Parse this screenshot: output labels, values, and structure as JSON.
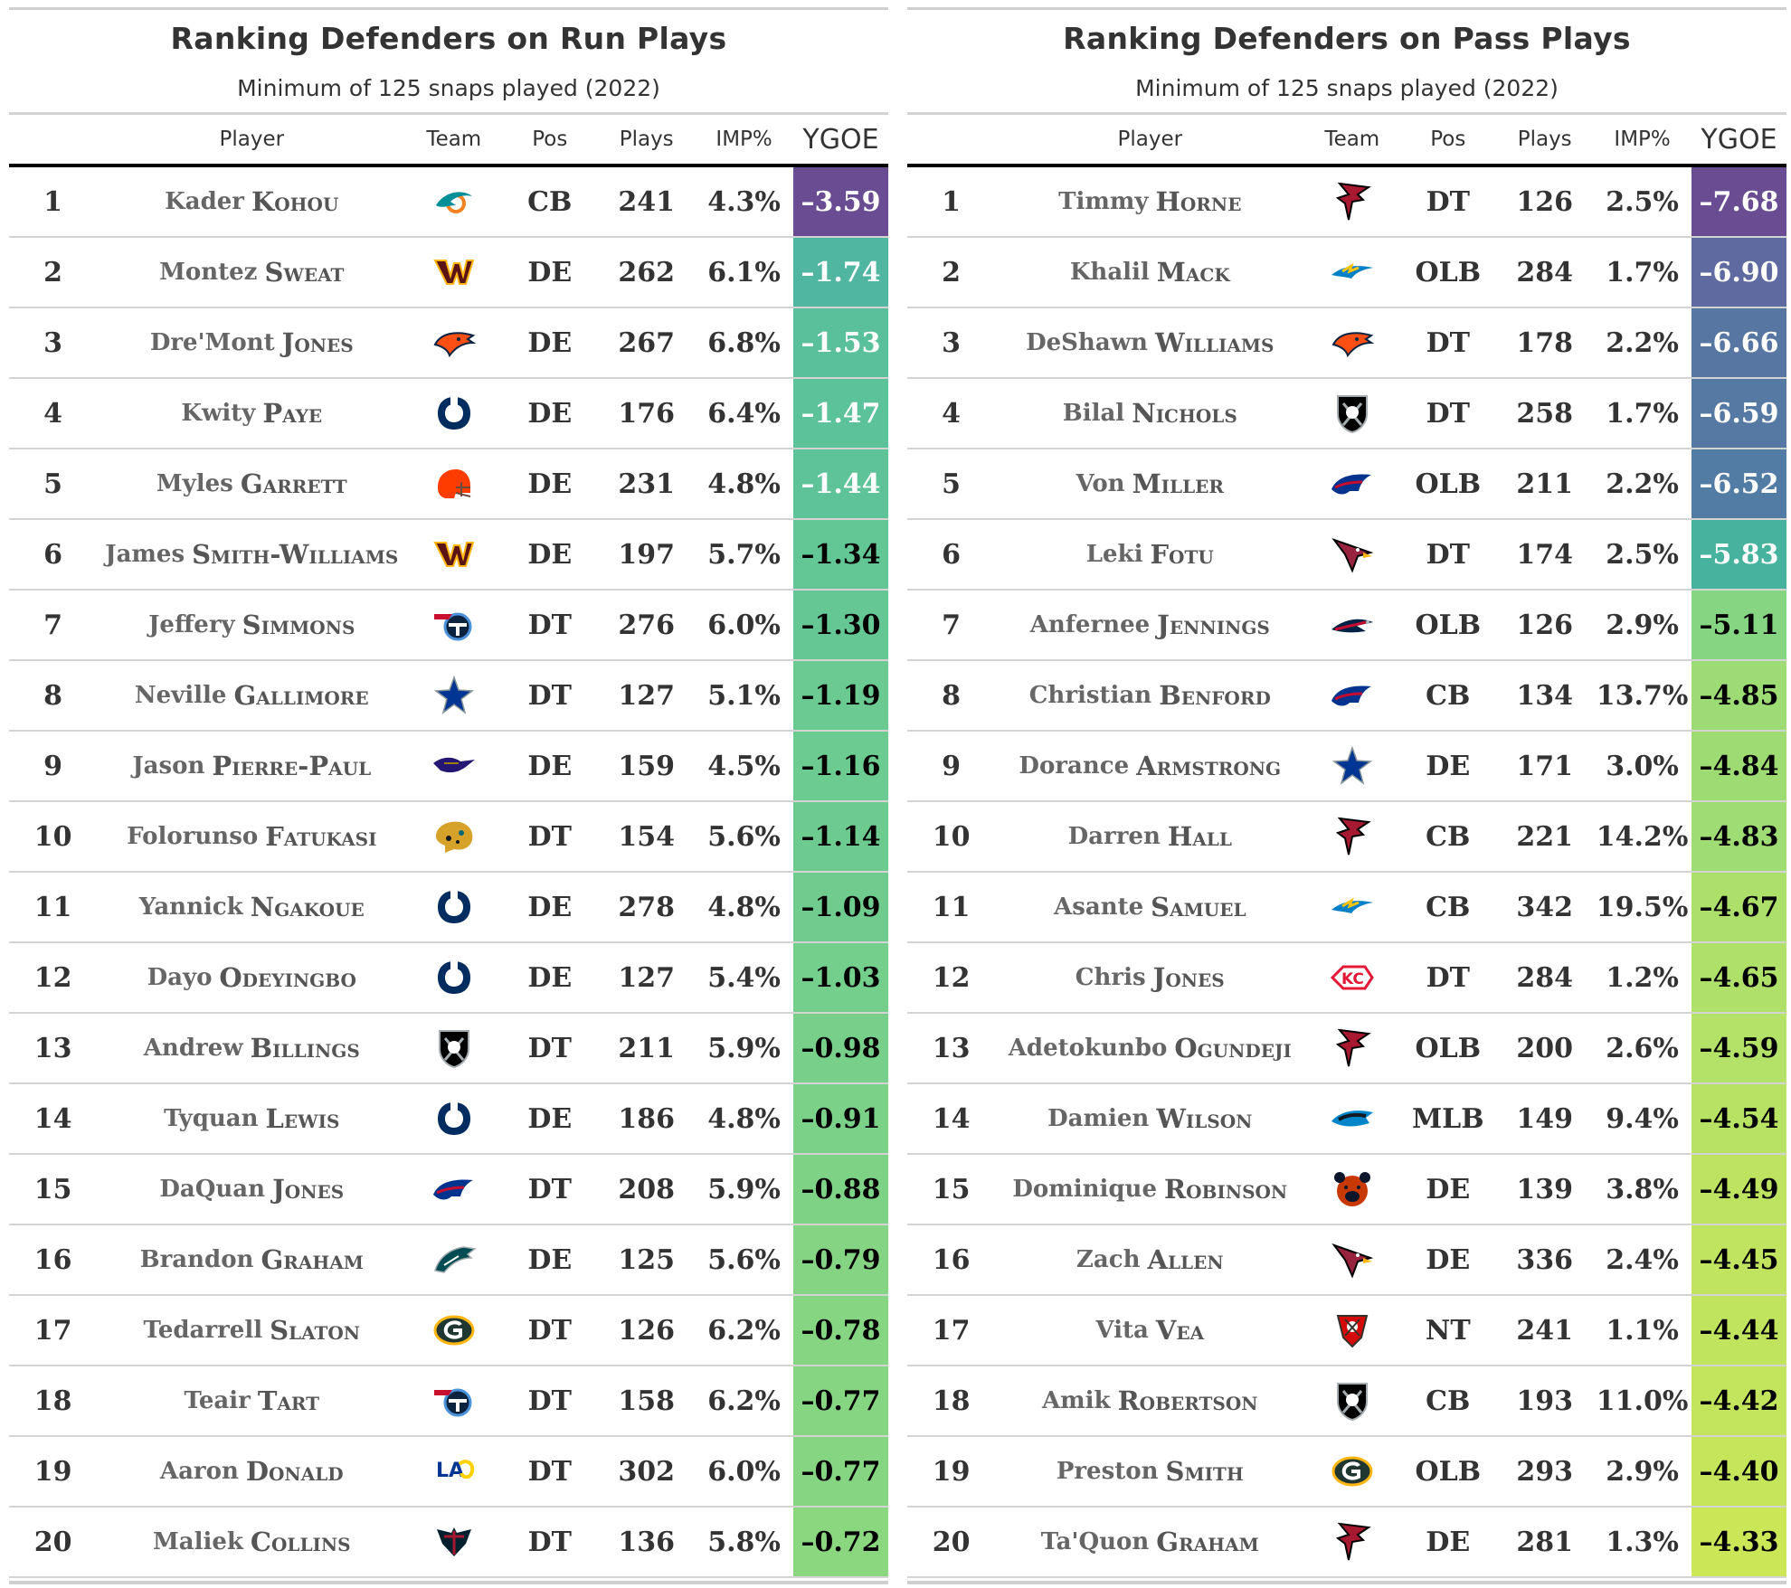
{
  "panels": [
    {
      "title": "Ranking Defenders on Run Plays",
      "subtitle": "Minimum of 125 snaps played (2022)",
      "columns": [
        "",
        "Player",
        "Team",
        "Pos",
        "Plays",
        "IMP%",
        "YGOE"
      ],
      "rows": [
        {
          "rank": "1",
          "first": "Kader",
          "last": "Kohou",
          "team": "dolphins-logo",
          "pos": "CB",
          "plays": "241",
          "imp": "4.3%",
          "ygoe": "–3.59",
          "color": "#6a4c93"
        },
        {
          "rank": "2",
          "first": "Montez",
          "last": "Sweat",
          "team": "commanders-logo",
          "pos": "DE",
          "plays": "262",
          "imp": "6.1%",
          "ygoe": "–1.74",
          "color": "#50b5a1"
        },
        {
          "rank": "3",
          "first": "Dre'Mont",
          "last": "Jones",
          "team": "broncos-logo",
          "pos": "DE",
          "plays": "267",
          "imp": "6.8%",
          "ygoe": "–1.53",
          "color": "#5ac09b"
        },
        {
          "rank": "4",
          "first": "Kwity",
          "last": "Paye",
          "team": "colts-logo",
          "pos": "DE",
          "plays": "176",
          "imp": "6.4%",
          "ygoe": "–1.47",
          "color": "#5cc299"
        },
        {
          "rank": "5",
          "first": "Myles",
          "last": "Garrett",
          "team": "browns-logo",
          "pos": "DE",
          "plays": "231",
          "imp": "4.8%",
          "ygoe": "–1.44",
          "color": "#5ec398"
        },
        {
          "rank": "6",
          "first": "James",
          "last": "Smith-Williams",
          "team": "commanders-logo",
          "pos": "DE",
          "plays": "197",
          "imp": "5.7%",
          "ygoe": "–1.34",
          "color": "#63c695"
        },
        {
          "rank": "7",
          "first": "Jeffery",
          "last": "Simmons",
          "team": "titans-logo",
          "pos": "DT",
          "plays": "276",
          "imp": "6.0%",
          "ygoe": "–1.30",
          "color": "#65c794"
        },
        {
          "rank": "8",
          "first": "Neville",
          "last": "Gallimore",
          "team": "cowboys-logo",
          "pos": "DT",
          "plays": "127",
          "imp": "5.1%",
          "ygoe": "–1.19",
          "color": "#6aca91"
        },
        {
          "rank": "9",
          "first": "Jason",
          "last": "Pierre-Paul",
          "team": "ravens-logo",
          "pos": "DE",
          "plays": "159",
          "imp": "4.5%",
          "ygoe": "–1.16",
          "color": "#6ccb90"
        },
        {
          "rank": "10",
          "first": "Folorunso",
          "last": "Fatukasi",
          "team": "jaguars-logo",
          "pos": "DT",
          "plays": "154",
          "imp": "5.6%",
          "ygoe": "–1.14",
          "color": "#6dcb8f"
        },
        {
          "rank": "11",
          "first": "Yannick",
          "last": "Ngakoue",
          "team": "colts-logo",
          "pos": "DE",
          "plays": "278",
          "imp": "4.8%",
          "ygoe": "–1.09",
          "color": "#70cc8e"
        },
        {
          "rank": "12",
          "first": "Dayo",
          "last": "Odeyingbo",
          "team": "colts-logo",
          "pos": "DE",
          "plays": "127",
          "imp": "5.4%",
          "ygoe": "–1.03",
          "color": "#74ce8c"
        },
        {
          "rank": "13",
          "first": "Andrew",
          "last": "Billings",
          "team": "raiders-logo",
          "pos": "DT",
          "plays": "211",
          "imp": "5.9%",
          "ygoe": "–0.98",
          "color": "#77cf8a"
        },
        {
          "rank": "14",
          "first": "Tyquan",
          "last": "Lewis",
          "team": "colts-logo",
          "pos": "DE",
          "plays": "186",
          "imp": "4.8%",
          "ygoe": "–0.91",
          "color": "#7bd188"
        },
        {
          "rank": "15",
          "first": "DaQuan",
          "last": "Jones",
          "team": "bills-logo",
          "pos": "DT",
          "plays": "208",
          "imp": "5.9%",
          "ygoe": "–0.88",
          "color": "#7ed286"
        },
        {
          "rank": "16",
          "first": "Brandon",
          "last": "Graham",
          "team": "eagles-logo",
          "pos": "DE",
          "plays": "125",
          "imp": "5.6%",
          "ygoe": "–0.79",
          "color": "#84d483"
        },
        {
          "rank": "17",
          "first": "Tedarrell",
          "last": "Slaton",
          "team": "packers-logo",
          "pos": "DT",
          "plays": "126",
          "imp": "6.2%",
          "ygoe": "–0.78",
          "color": "#85d582"
        },
        {
          "rank": "18",
          "first": "Teair",
          "last": "Tart",
          "team": "titans-logo",
          "pos": "DT",
          "plays": "158",
          "imp": "6.2%",
          "ygoe": "–0.77",
          "color": "#86d582"
        },
        {
          "rank": "19",
          "first": "Aaron",
          "last": "Donald",
          "team": "rams-logo",
          "pos": "DT",
          "plays": "302",
          "imp": "6.0%",
          "ygoe": "–0.77",
          "color": "#86d582"
        },
        {
          "rank": "20",
          "first": "Maliek",
          "last": "Collins",
          "team": "texans-logo",
          "pos": "DT",
          "plays": "136",
          "imp": "5.8%",
          "ygoe": "–0.72",
          "color": "#8ad77f"
        }
      ]
    },
    {
      "title": "Ranking Defenders on Pass Plays",
      "subtitle": "Minimum of 125 snaps played (2022)",
      "columns": [
        "",
        "Player",
        "Team",
        "Pos",
        "Plays",
        "IMP%",
        "YGOE"
      ],
      "rows": [
        {
          "rank": "1",
          "first": "Timmy",
          "last": "Horne",
          "team": "falcons-logo",
          "pos": "DT",
          "plays": "126",
          "imp": "2.5%",
          "ygoe": "–7.68",
          "color": "#6a4c93"
        },
        {
          "rank": "2",
          "first": "Khalil",
          "last": "Mack",
          "team": "chargers-logo",
          "pos": "OLB",
          "plays": "284",
          "imp": "1.7%",
          "ygoe": "–6.90",
          "color": "#5e6aa0"
        },
        {
          "rank": "3",
          "first": "DeShawn",
          "last": "Williams",
          "team": "broncos-logo",
          "pos": "DT",
          "plays": "178",
          "imp": "2.2%",
          "ygoe": "–6.66",
          "color": "#5776a2"
        },
        {
          "rank": "4",
          "first": "Bilal",
          "last": "Nichols",
          "team": "raiders-logo",
          "pos": "DT",
          "plays": "258",
          "imp": "1.7%",
          "ygoe": "–6.59",
          "color": "#5579a3"
        },
        {
          "rank": "5",
          "first": "Von",
          "last": "Miller",
          "team": "bills-logo",
          "pos": "OLB",
          "plays": "211",
          "imp": "2.2%",
          "ygoe": "–6.52",
          "color": "#537ca4"
        },
        {
          "rank": "6",
          "first": "Leki",
          "last": "Fotu",
          "team": "cardinals-logo",
          "pos": "DT",
          "plays": "174",
          "imp": "2.5%",
          "ygoe": "–5.83",
          "color": "#47b39e"
        },
        {
          "rank": "7",
          "first": "Anfernee",
          "last": "Jennings",
          "team": "patriots-logo",
          "pos": "OLB",
          "plays": "126",
          "imp": "2.9%",
          "ygoe": "–5.11",
          "color": "#86d582"
        },
        {
          "rank": "8",
          "first": "Christian",
          "last": "Benford",
          "team": "bills-logo",
          "pos": "CB",
          "plays": "134",
          "imp": "13.7%",
          "ygoe": "–4.85",
          "color": "#9ddb74"
        },
        {
          "rank": "9",
          "first": "Dorance",
          "last": "Armstrong",
          "team": "cowboys-logo",
          "pos": "DE",
          "plays": "171",
          "imp": "3.0%",
          "ygoe": "–4.84",
          "color": "#9edb73"
        },
        {
          "rank": "10",
          "first": "Darren",
          "last": "Hall",
          "team": "falcons-logo",
          "pos": "CB",
          "plays": "221",
          "imp": "14.2%",
          "ygoe": "–4.83",
          "color": "#9fdc73"
        },
        {
          "rank": "11",
          "first": "Asante",
          "last": "Samuel",
          "team": "chargers-logo",
          "pos": "CB",
          "plays": "342",
          "imp": "19.5%",
          "ygoe": "–4.67",
          "color": "#addf6b"
        },
        {
          "rank": "12",
          "first": "Chris",
          "last": "Jones",
          "team": "chiefs-logo",
          "pos": "DT",
          "plays": "284",
          "imp": "1.2%",
          "ygoe": "–4.65",
          "color": "#afe06a"
        },
        {
          "rank": "13",
          "first": "Adetokunbo",
          "last": "Ogundeji",
          "team": "falcons-logo",
          "pos": "OLB",
          "plays": "200",
          "imp": "2.6%",
          "ygoe": "–4.59",
          "color": "#b4e167"
        },
        {
          "rank": "14",
          "first": "Damien",
          "last": "Wilson",
          "team": "panthers-logo",
          "pos": "MLB",
          "plays": "149",
          "imp": "9.4%",
          "ygoe": "–4.54",
          "color": "#b8e264"
        },
        {
          "rank": "15",
          "first": "Dominique",
          "last": "Robinson",
          "team": "bears-logo",
          "pos": "DE",
          "plays": "139",
          "imp": "3.8%",
          "ygoe": "–4.49",
          "color": "#bde361"
        },
        {
          "rank": "16",
          "first": "Zach",
          "last": "Allen",
          "team": "cardinals-logo",
          "pos": "DE",
          "plays": "336",
          "imp": "2.4%",
          "ygoe": "–4.45",
          "color": "#c0e45f"
        },
        {
          "rank": "17",
          "first": "Vita",
          "last": "Vea",
          "team": "buccaneers-logo",
          "pos": "NT",
          "plays": "241",
          "imp": "1.1%",
          "ygoe": "–4.44",
          "color": "#c1e45e"
        },
        {
          "rank": "18",
          "first": "Amik",
          "last": "Robertson",
          "team": "raiders-logo",
          "pos": "CB",
          "plays": "193",
          "imp": "11.0%",
          "ygoe": "–4.42",
          "color": "#c3e55d"
        },
        {
          "rank": "19",
          "first": "Preston",
          "last": "Smith",
          "team": "packers-logo",
          "pos": "OLB",
          "plays": "293",
          "imp": "2.9%",
          "ygoe": "–4.40",
          "color": "#c5e55b"
        },
        {
          "rank": "20",
          "first": "Ta'Quon",
          "last": "Graham",
          "team": "falcons-logo",
          "pos": "DE",
          "plays": "281",
          "imp": "1.3%",
          "ygoe": "–4.33",
          "color": "#cbe757"
        }
      ]
    }
  ]
}
